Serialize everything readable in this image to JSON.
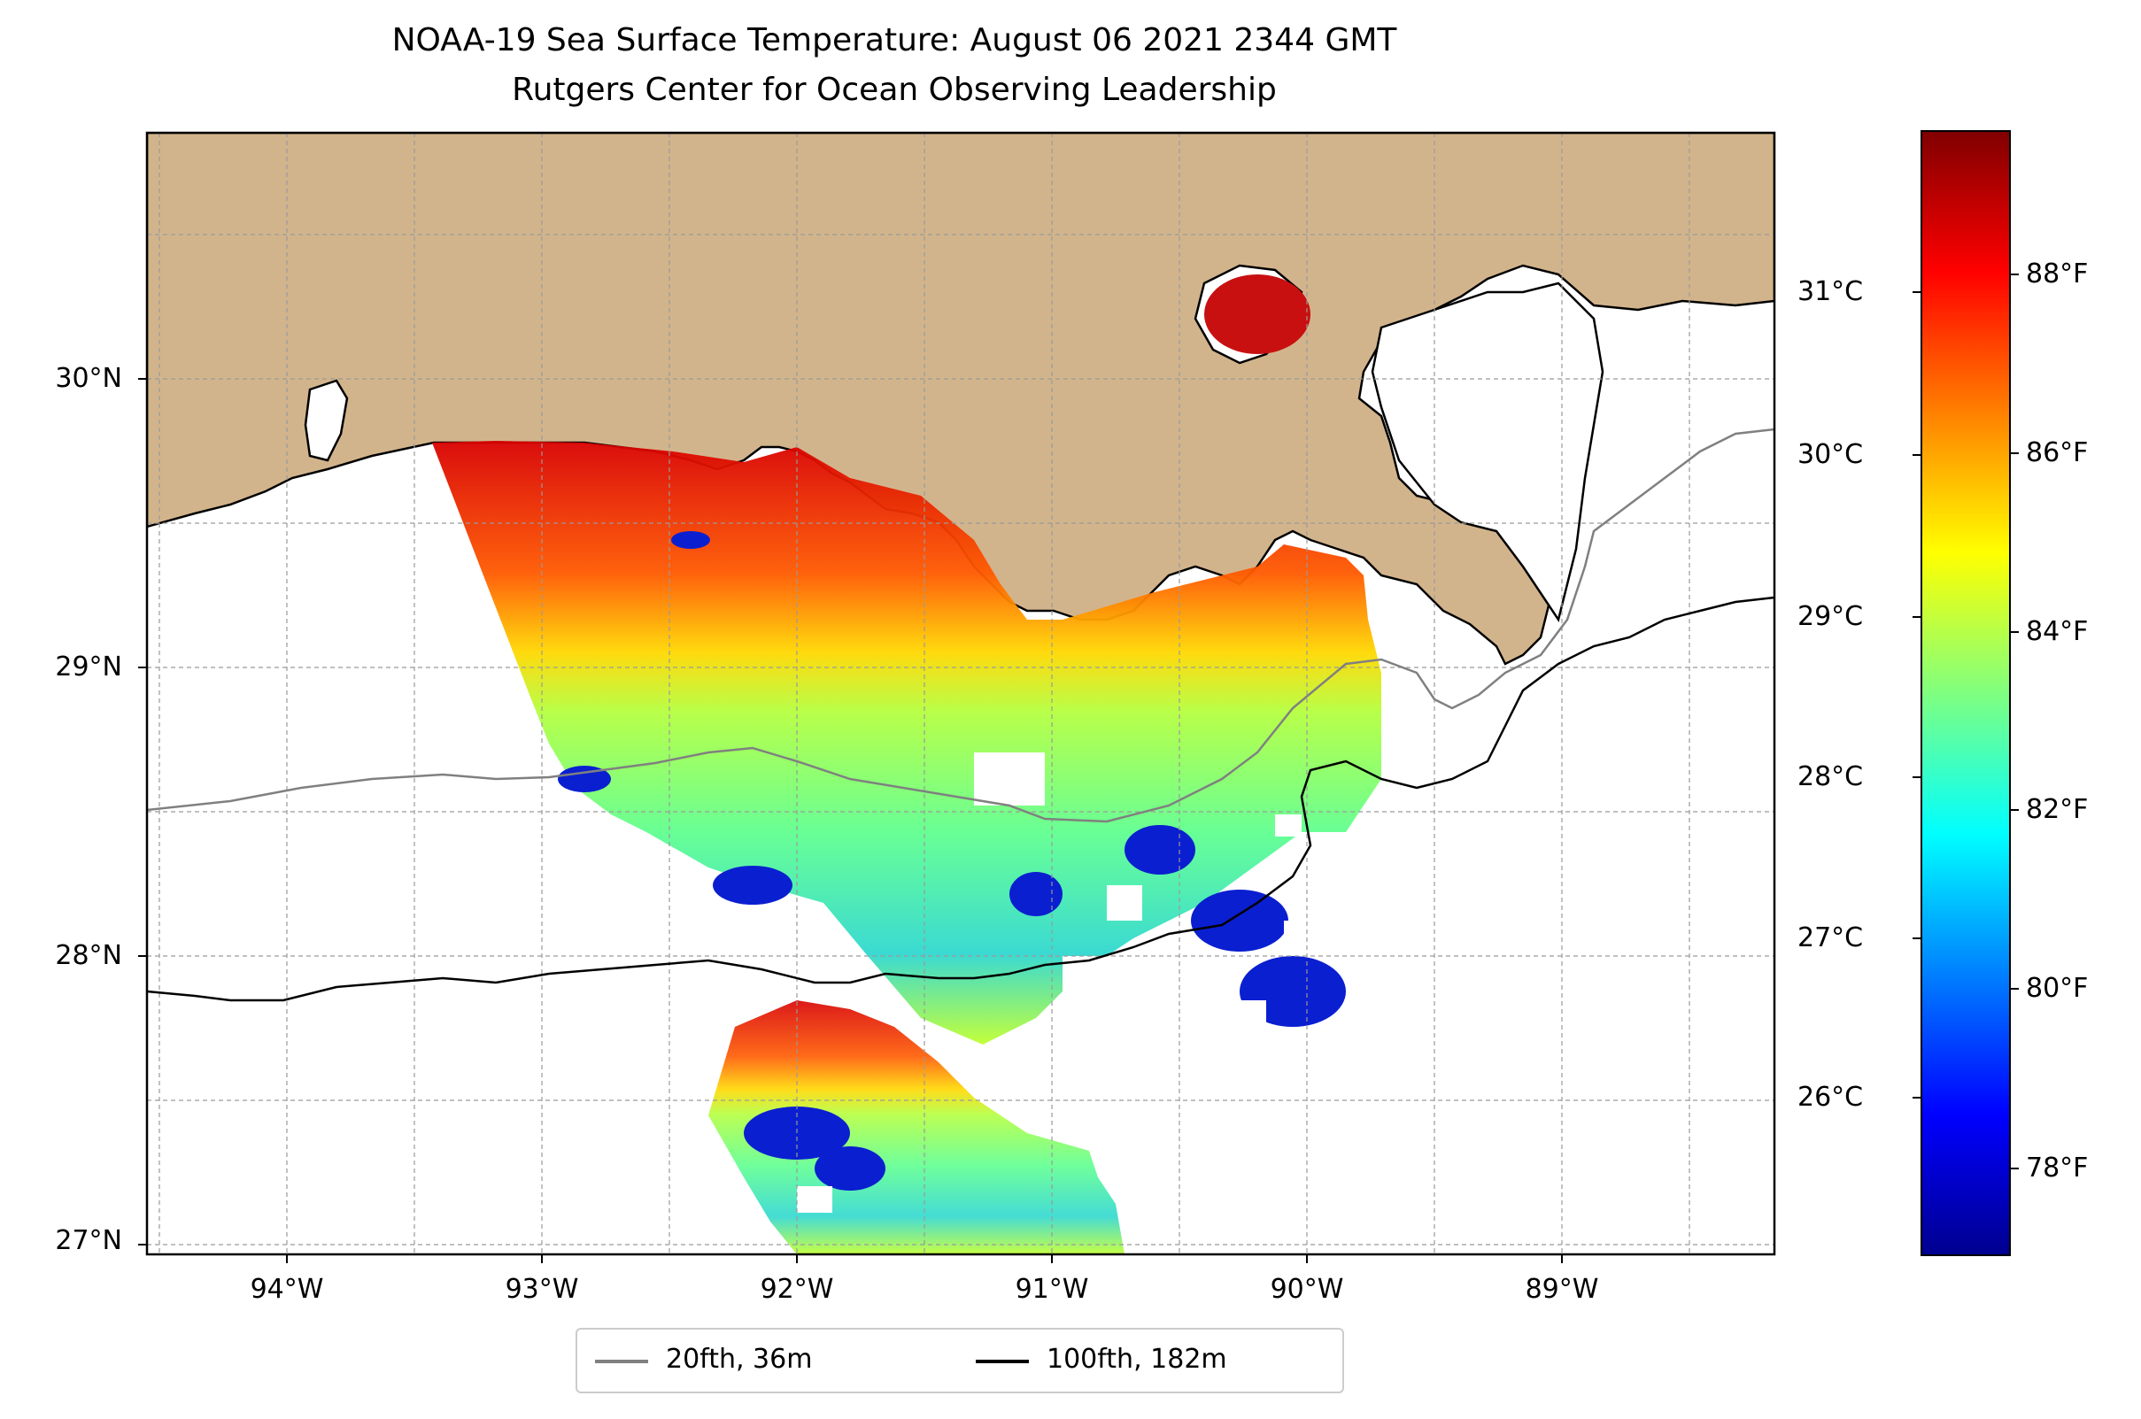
{
  "title": "NOAA-19 Sea Surface Temperature: August 06 2021 2344 GMT",
  "subtitle": "Rutgers Center for Ocean Observing Leadership",
  "map": {
    "region": "northern Gulf of Mexico, Louisiana coast",
    "land_color": "#d2b48c",
    "ocean_color": "#ffffff",
    "coastline_color": "#000000",
    "gridlines": true,
    "lon_range": [
      -94.5,
      -88.2
    ],
    "lat_range": [
      26.95,
      30.85
    ]
  },
  "lat_ticks": [
    {
      "value": 30,
      "label": "30°N"
    },
    {
      "value": 29,
      "label": "29°N"
    },
    {
      "value": 28,
      "label": "28°N"
    },
    {
      "value": 27,
      "label": "27°N"
    }
  ],
  "lon_ticks": [
    {
      "value": -94,
      "label": "94°W"
    },
    {
      "value": -93,
      "label": "93°W"
    },
    {
      "value": -92,
      "label": "92°W"
    },
    {
      "value": -91,
      "label": "91°W"
    },
    {
      "value": -90,
      "label": "90°W"
    },
    {
      "value": -89,
      "label": "89°W"
    }
  ],
  "colorbar": {
    "colormap": "jet",
    "celsius_ticks": [
      {
        "value": 31,
        "label": "31°C"
      },
      {
        "value": 30,
        "label": "30°C"
      },
      {
        "value": 29,
        "label": "29°C"
      },
      {
        "value": 28,
        "label": "28°C"
      },
      {
        "value": 27,
        "label": "27°C"
      },
      {
        "value": 26,
        "label": "26°C"
      }
    ],
    "fahrenheit_ticks": [
      {
        "value": 88,
        "label": "88°F"
      },
      {
        "value": 86,
        "label": "86°F"
      },
      {
        "value": 84,
        "label": "84°F"
      },
      {
        "value": 82,
        "label": "82°F"
      },
      {
        "value": 80,
        "label": "80°F"
      },
      {
        "value": 78,
        "label": "78°F"
      }
    ],
    "range_f": [
      77,
      90
    ]
  },
  "legend": {
    "location": "below map",
    "items": [
      {
        "label": "20fth, 36m",
        "color": "#808080"
      },
      {
        "label": "100fth, 182m",
        "color": "#000000"
      }
    ]
  }
}
